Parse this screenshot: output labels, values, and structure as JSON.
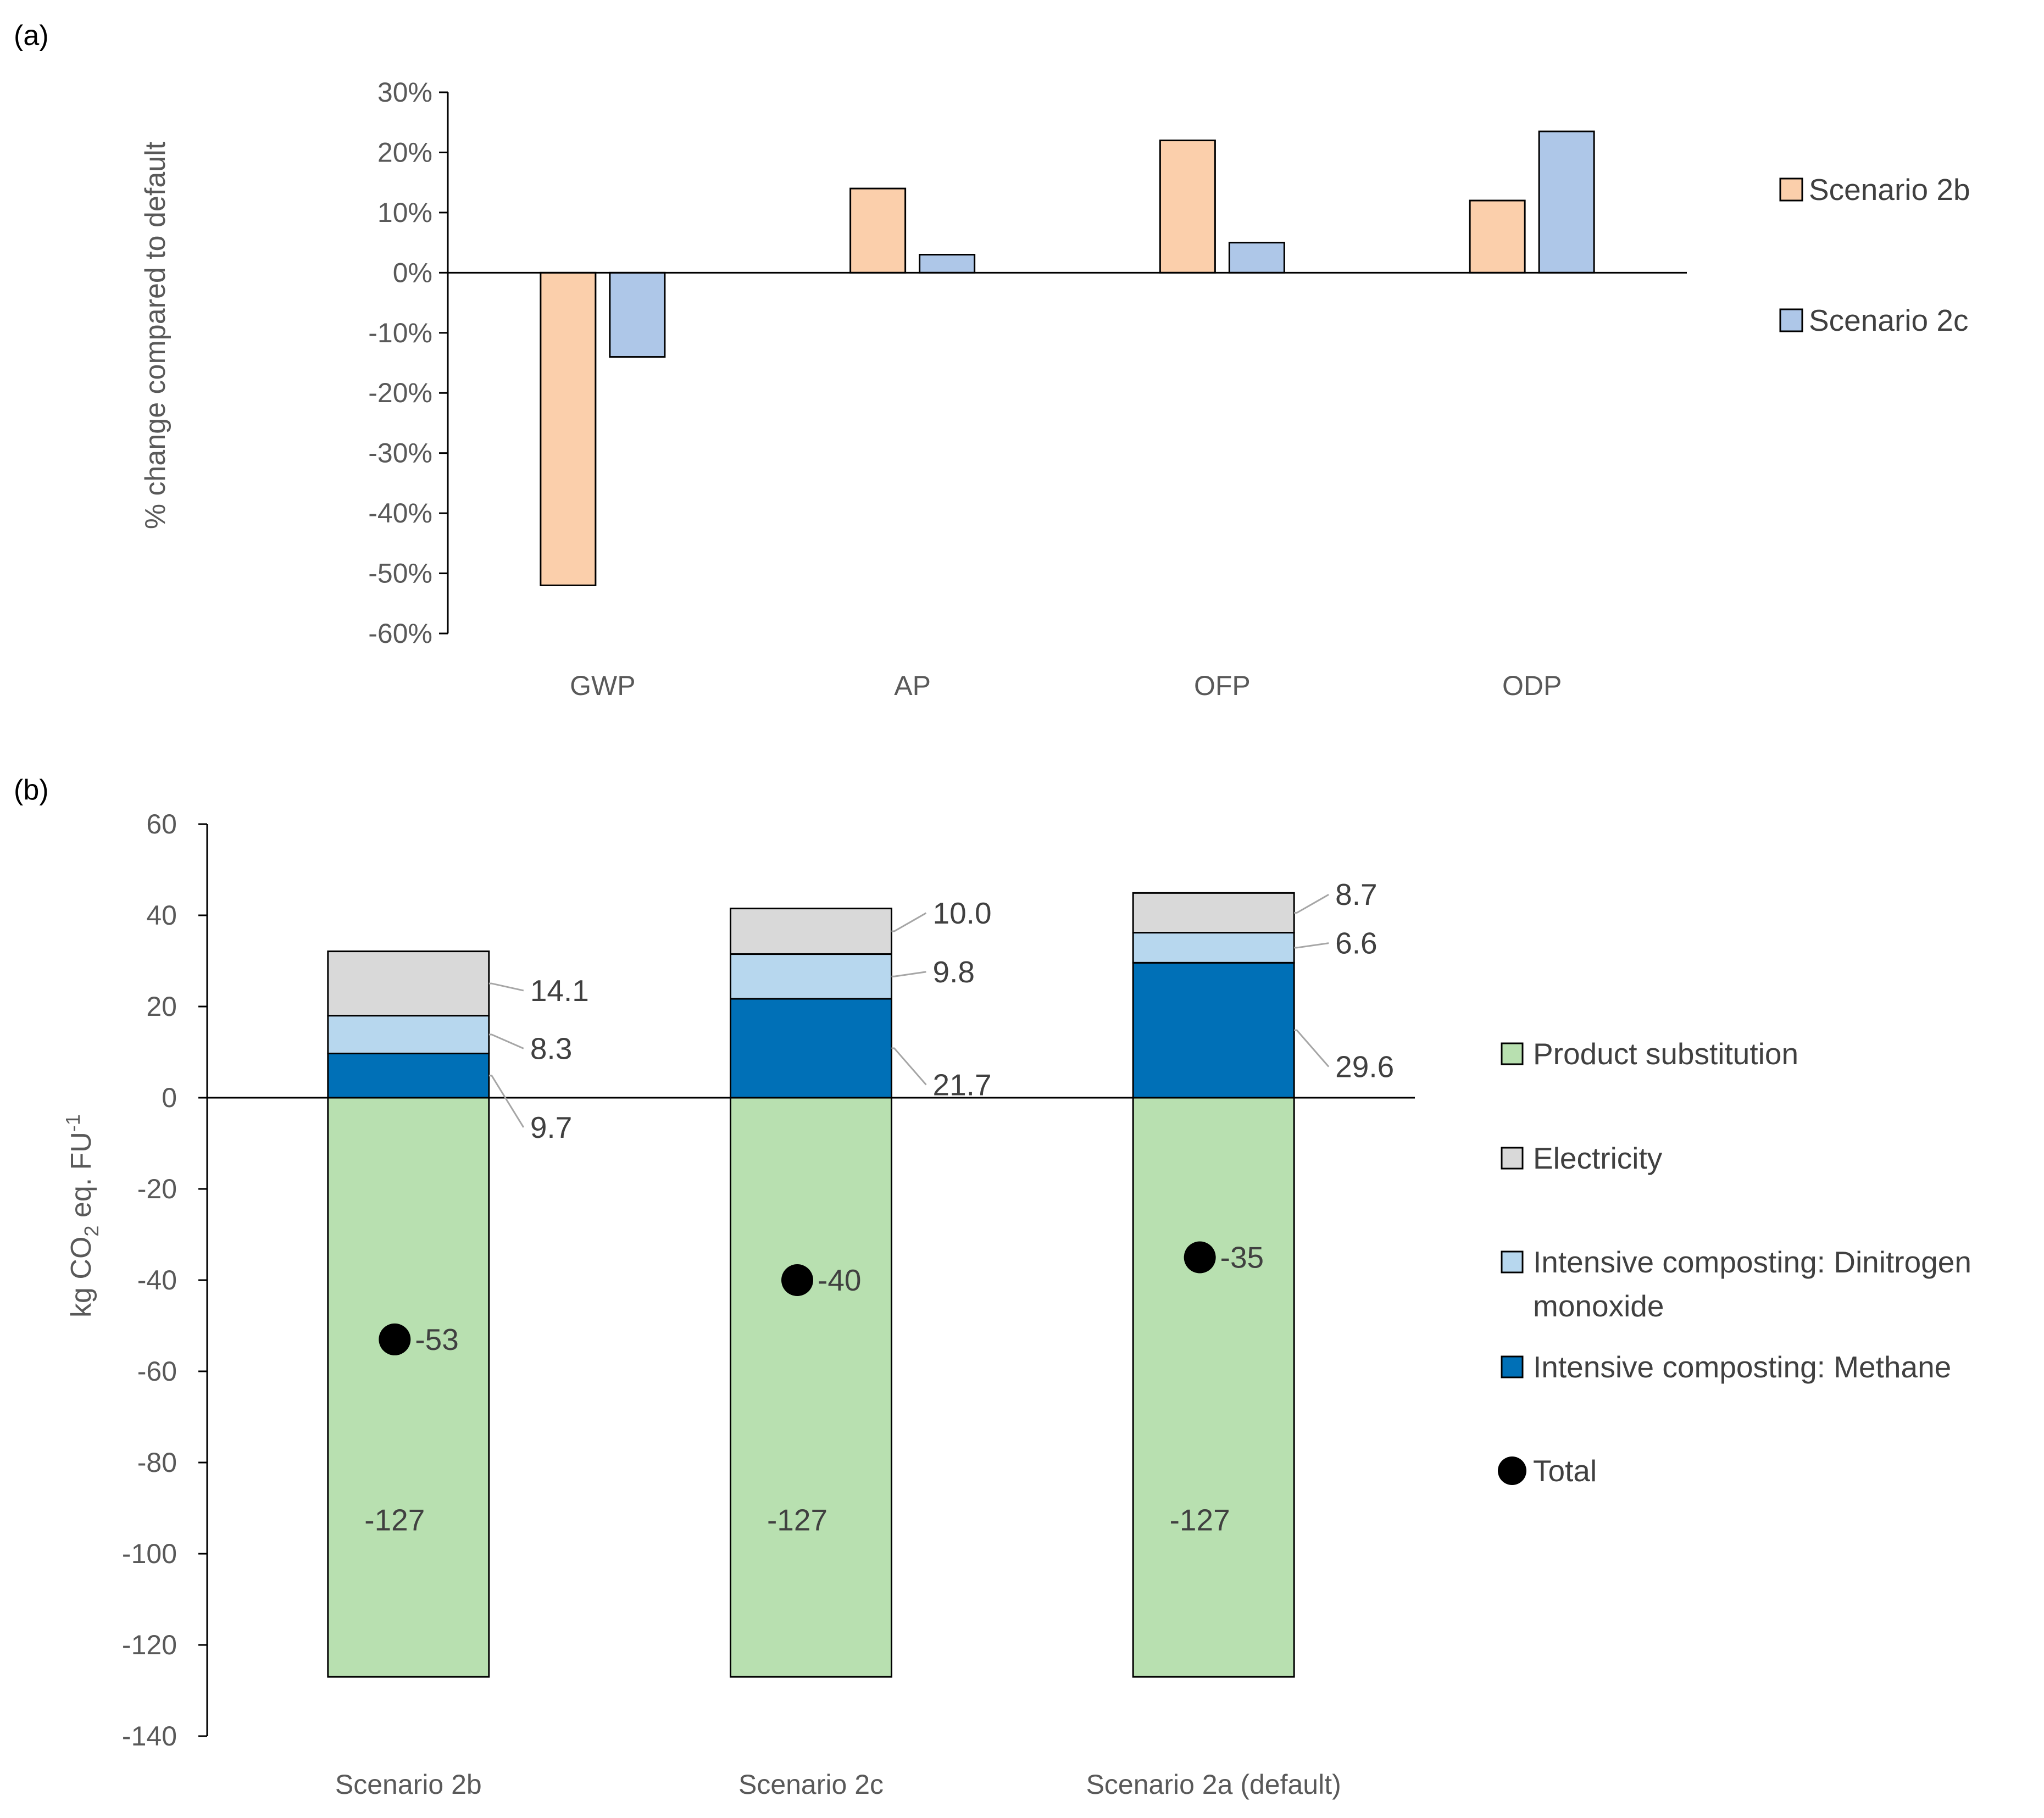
{
  "chart_data": [
    {
      "panel": "(a)",
      "type": "bar",
      "categories": [
        "GWP",
        "AP",
        "OFP",
        "ODP"
      ],
      "series": [
        {
          "name": "Scenario 2b",
          "color": "#FBCFAB",
          "values": [
            -52,
            14,
            22,
            12
          ]
        },
        {
          "name": "Scenario 2c",
          "color": "#AEC7E8",
          "values": [
            -14,
            3,
            5,
            23.5
          ]
        }
      ],
      "ylabel": "% change compared to default",
      "ylim": [
        -60,
        30
      ],
      "yticks": [
        30,
        20,
        10,
        0,
        -10,
        -20,
        -30,
        -40,
        -50,
        -60
      ],
      "ytick_labels": [
        "30%",
        "20%",
        "10%",
        "0%",
        "-10%",
        "-20%",
        "-30%",
        "-40%",
        "-50%",
        "-60%"
      ],
      "legend": "right"
    },
    {
      "panel": "(b)",
      "type": "bar",
      "stacked": true,
      "categories": [
        "Scenario 2b",
        "Scenario 2c",
        "Scenario 2a (default)"
      ],
      "series": [
        {
          "name": "Product substitution",
          "color": "#B8E0B0",
          "values": [
            -127,
            -127,
            -127
          ],
          "labels": [
            "-127",
            "-127",
            "-127"
          ]
        },
        {
          "name": "Electricity",
          "color": "#D9D9D9",
          "values": [
            14.1,
            10.0,
            8.7
          ],
          "labels": [
            "14.1",
            "10.0",
            "8.7"
          ]
        },
        {
          "name": "Intensive composting: Dinitrogen monoxide",
          "color": "#B7D7EE",
          "values": [
            8.3,
            9.8,
            6.6
          ],
          "labels": [
            "8.3",
            "9.8",
            "6.6"
          ]
        },
        {
          "name": "Intensive composting: Methane",
          "color": "#0070B7",
          "values": [
            9.7,
            21.7,
            29.6
          ],
          "labels": [
            "9.7",
            "21.7",
            "29.6"
          ]
        }
      ],
      "total": {
        "name": "Total",
        "color": "#000000",
        "values": [
          -53,
          -40,
          -35
        ],
        "labels": [
          "-53",
          "-40",
          "-35"
        ]
      },
      "ylabel": "kg CO2 eq. FU-1",
      "ylabel_parts": {
        "pre": "kg CO",
        "sub": "2",
        "mid": " eq. FU",
        "sup": "-1"
      },
      "ylim": [
        -140,
        60
      ],
      "yticks": [
        60,
        40,
        20,
        0,
        -20,
        -40,
        -60,
        -80,
        -100,
        -120,
        -140
      ],
      "legend_order": [
        "Product substitution",
        "Electricity",
        "Intensive composting: Dinitrogen monoxide",
        "Intensive composting: Methane",
        "Total"
      ],
      "legend_lines": {
        "Intensive composting: Dinitrogen monoxide": [
          "Intensive composting: Dinitrogen",
          "monoxide"
        ]
      },
      "legend": "right"
    }
  ]
}
